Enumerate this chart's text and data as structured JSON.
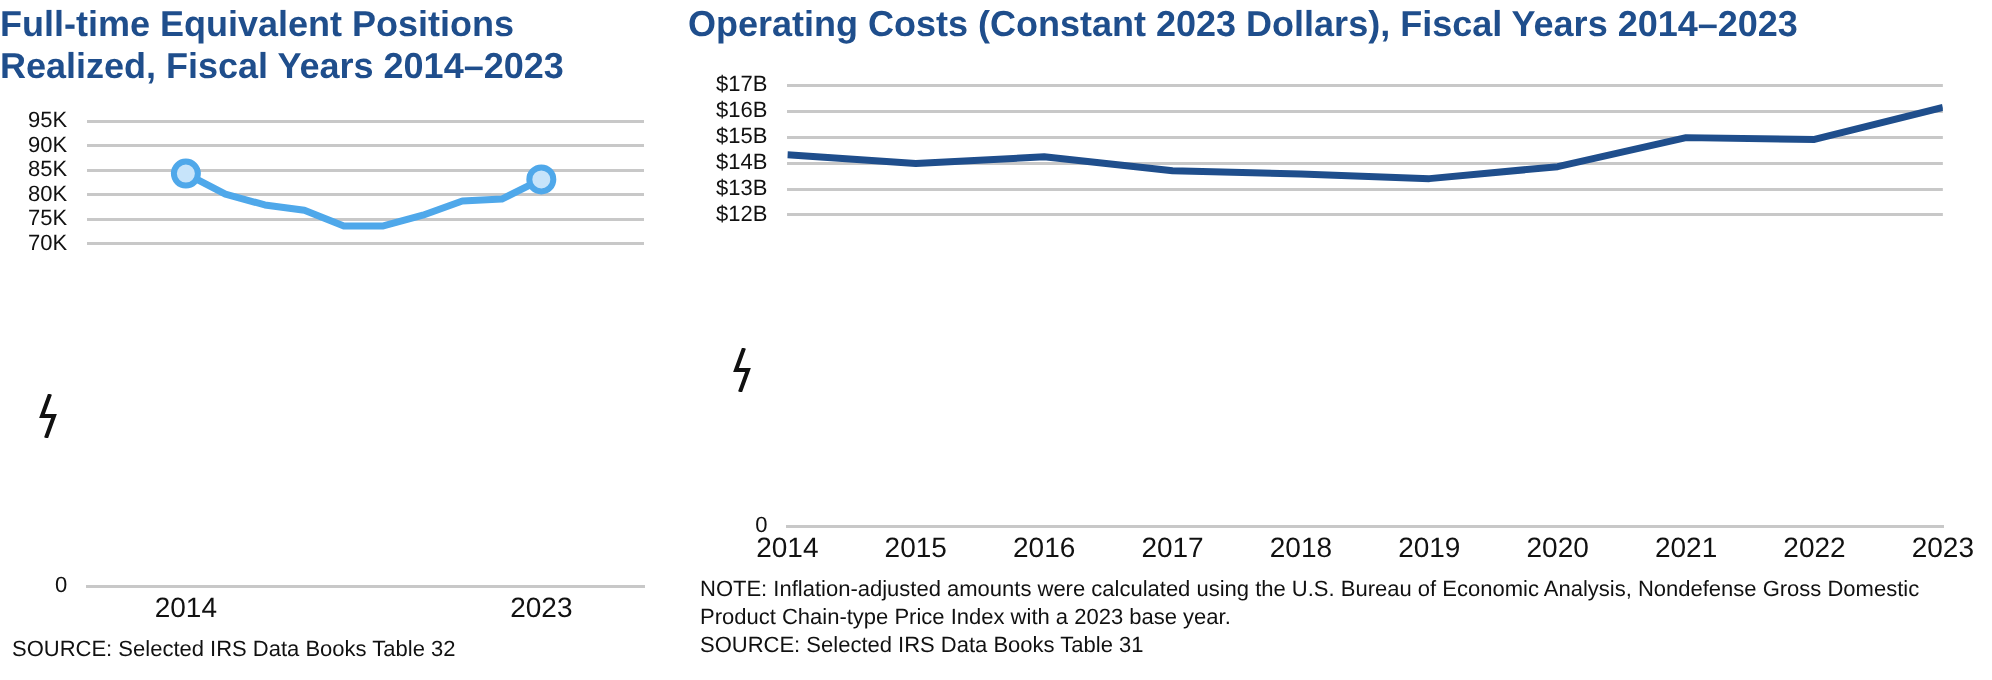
{
  "chart_data": [
    {
      "type": "line",
      "title": "Full-time Equivalent Positions Realized, Fiscal Years 2014–2023",
      "x": [
        2014,
        2015,
        2016,
        2017,
        2018,
        2019,
        2020,
        2021,
        2022,
        2023
      ],
      "series": [
        {
          "color": "#4fa8ea",
          "values": [
            84300,
            80100,
            77900,
            76800,
            73600,
            73600,
            75800,
            78700,
            79100,
            83100
          ]
        },
        {
          "type": "scatter",
          "marker": "circle",
          "color": "#4fa8ea",
          "x": [
            2014,
            2023
          ],
          "values": [
            84300,
            83100
          ]
        }
      ],
      "xlim": [
        2011.5,
        2025.6
      ],
      "xticks": [
        2014,
        2023
      ],
      "ylim": [
        0,
        95000
      ],
      "yticks": [
        0,
        {
          "value": 70000,
          "label": "70K"
        },
        {
          "value": 75000,
          "label": "75K"
        },
        {
          "value": 80000,
          "label": "80K"
        },
        {
          "value": 85000,
          "label": "85K"
        },
        {
          "value": 90000,
          "label": "90K"
        },
        {
          "value": 95000,
          "label": "95K"
        }
      ],
      "grid": "y",
      "annotations": [
        "SOURCE: Selected IRS Data Books Table 32"
      ]
    },
    {
      "type": "line",
      "title": "Operating Costs (Constant 2023 Dollars), Fiscal Years 2014–2023",
      "x": [
        2014,
        2015,
        2016,
        2017,
        2018,
        2019,
        2020,
        2021,
        2022,
        2023
      ],
      "series": [
        {
          "color": "#1f4e8c",
          "values": [
            14.32,
            13.98,
            14.24,
            13.7,
            13.58,
            13.4,
            13.86,
            14.98,
            14.91,
            16.14
          ]
        }
      ],
      "xlim": [
        2014,
        2023
      ],
      "xticks": [
        2014,
        2015,
        2016,
        2017,
        2018,
        2019,
        2020,
        2021,
        2022,
        2023
      ],
      "ylim": [
        0,
        17
      ],
      "yticks": [
        0,
        {
          "value": 12,
          "label": "$12B"
        },
        {
          "value": 13,
          "label": "$13B"
        },
        {
          "value": 14,
          "label": "$14B"
        },
        {
          "value": 15,
          "label": "$15B"
        },
        {
          "value": 16,
          "label": "$16B"
        },
        {
          "value": 17,
          "label": "$17B"
        }
      ],
      "grid": "y",
      "annotations": [
        "NOTE: Inflation-adjusted amounts were calculated using the U.S. Bureau of Economic Analysis, Nondefense Gross Domestic Product Chain-type Price Index with a 2023 base year.",
        "SOURCE: Selected IRS Data Books Table 31"
      ]
    }
  ]
}
